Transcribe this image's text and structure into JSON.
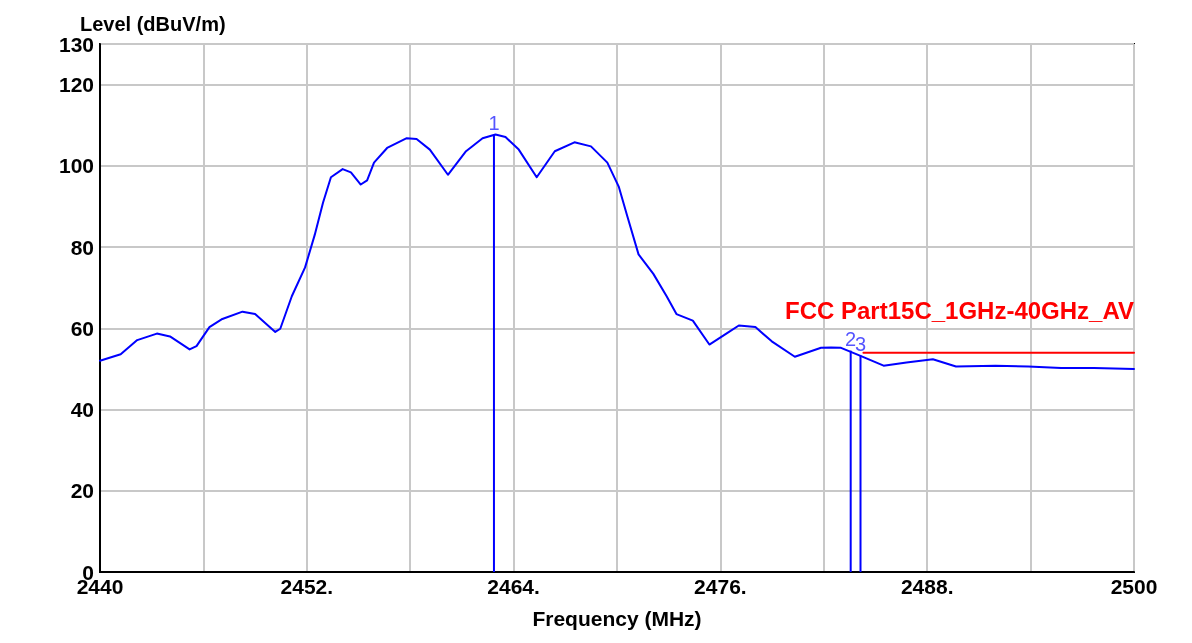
{
  "chart_data": {
    "type": "line",
    "xlabel": "Frequency (MHz)",
    "ylabel": "Level (dBuV/m)",
    "xlim": [
      2440,
      2500
    ],
    "ylim": [
      0,
      130
    ],
    "xticks": [
      2440,
      {
        "value": 2446,
        "label": null
      },
      {
        "value": 2452,
        "label": "2452."
      },
      {
        "value": 2458,
        "label": null
      },
      {
        "value": 2464,
        "label": "2464."
      },
      {
        "value": 2470,
        "label": null
      },
      {
        "value": 2476,
        "label": "2476."
      },
      {
        "value": 2482,
        "label": null
      },
      {
        "value": 2488,
        "label": "2488."
      },
      {
        "value": 2494,
        "label": null
      },
      2500
    ],
    "yticks": [
      0,
      20,
      40,
      60,
      80,
      100,
      120,
      130
    ],
    "grid": true,
    "legend": false,
    "marker": "none",
    "line_style": "solid",
    "series": [
      {
        "color": "#0000ff",
        "x": [
          2440,
          2441.2,
          2442.16,
          2443.3,
          2444.06,
          2445.2,
          2445.6,
          2446.35,
          2447.1,
          2448.27,
          2449.0,
          2450.17,
          2450.46,
          2451.13,
          2451.9,
          2452.46,
          2452.94,
          2453.4,
          2454.08,
          2454.56,
          2455.13,
          2455.5,
          2455.9,
          2456.66,
          2457.8,
          2458.37,
          2459.14,
          2460.19,
          2461.24,
          2462.2,
          2462.95,
          2463.53,
          2464.3,
          2465.34,
          2466.39,
          2467.53,
          2468.49,
          2469.44,
          2470.1,
          2470.59,
          2471.25,
          2472.11,
          2472.88,
          2473.45,
          2474.4,
          2475.36,
          2476.5,
          2477.07,
          2478.03,
          2478.98,
          2480.32,
          2481.84,
          2482.42,
          2483.0,
          2484.13,
          2485.47,
          2486.8,
          2488.33,
          2489.67,
          2491.96,
          2493.86,
          2495.77,
          2497.68,
          2500
        ],
        "values": [
          52.0,
          53.6,
          57.1,
          58.7,
          58.0,
          54.8,
          55.6,
          60.3,
          62.3,
          64.1,
          63.5,
          59.1,
          59.9,
          67.9,
          75.0,
          83.0,
          90.9,
          97.2,
          99.2,
          98.4,
          95.4,
          96.4,
          100.8,
          104.4,
          106.8,
          106.6,
          104.0,
          97.8,
          103.6,
          106.8,
          107.7,
          107.1,
          104.0,
          97.2,
          103.6,
          105.8,
          104.8,
          100.8,
          94.9,
          87.7,
          78.2,
          73.4,
          67.9,
          63.5,
          61.9,
          56.0,
          59.1,
          60.7,
          60.3,
          56.8,
          53.0,
          55.2,
          55.3,
          55.2,
          53.2,
          50.8,
          51.6,
          52.4,
          50.6,
          50.8,
          50.6,
          50.2,
          50.2,
          50.0
        ]
      },
      {
        "type": "line",
        "name": "FCC Part15C_1GHz-40GHz_AV",
        "color": "#ff0000",
        "x": [
          2484.3,
          2500
        ],
        "values": [
          54,
          54
        ]
      },
      {
        "type": "bar",
        "color": "#0000ff",
        "x": [
          2462.86,
          2483.56,
          2484.13
        ],
        "values": [
          107.7,
          54.5,
          53.3
        ]
      }
    ],
    "annotations": [
      {
        "text": "1",
        "x": 2462.86,
        "y": 107.7
      },
      {
        "text": "2",
        "x": 2483.56,
        "y": 54.5
      },
      {
        "text": "3",
        "x": 2484.13,
        "y": 53.3
      }
    ]
  }
}
